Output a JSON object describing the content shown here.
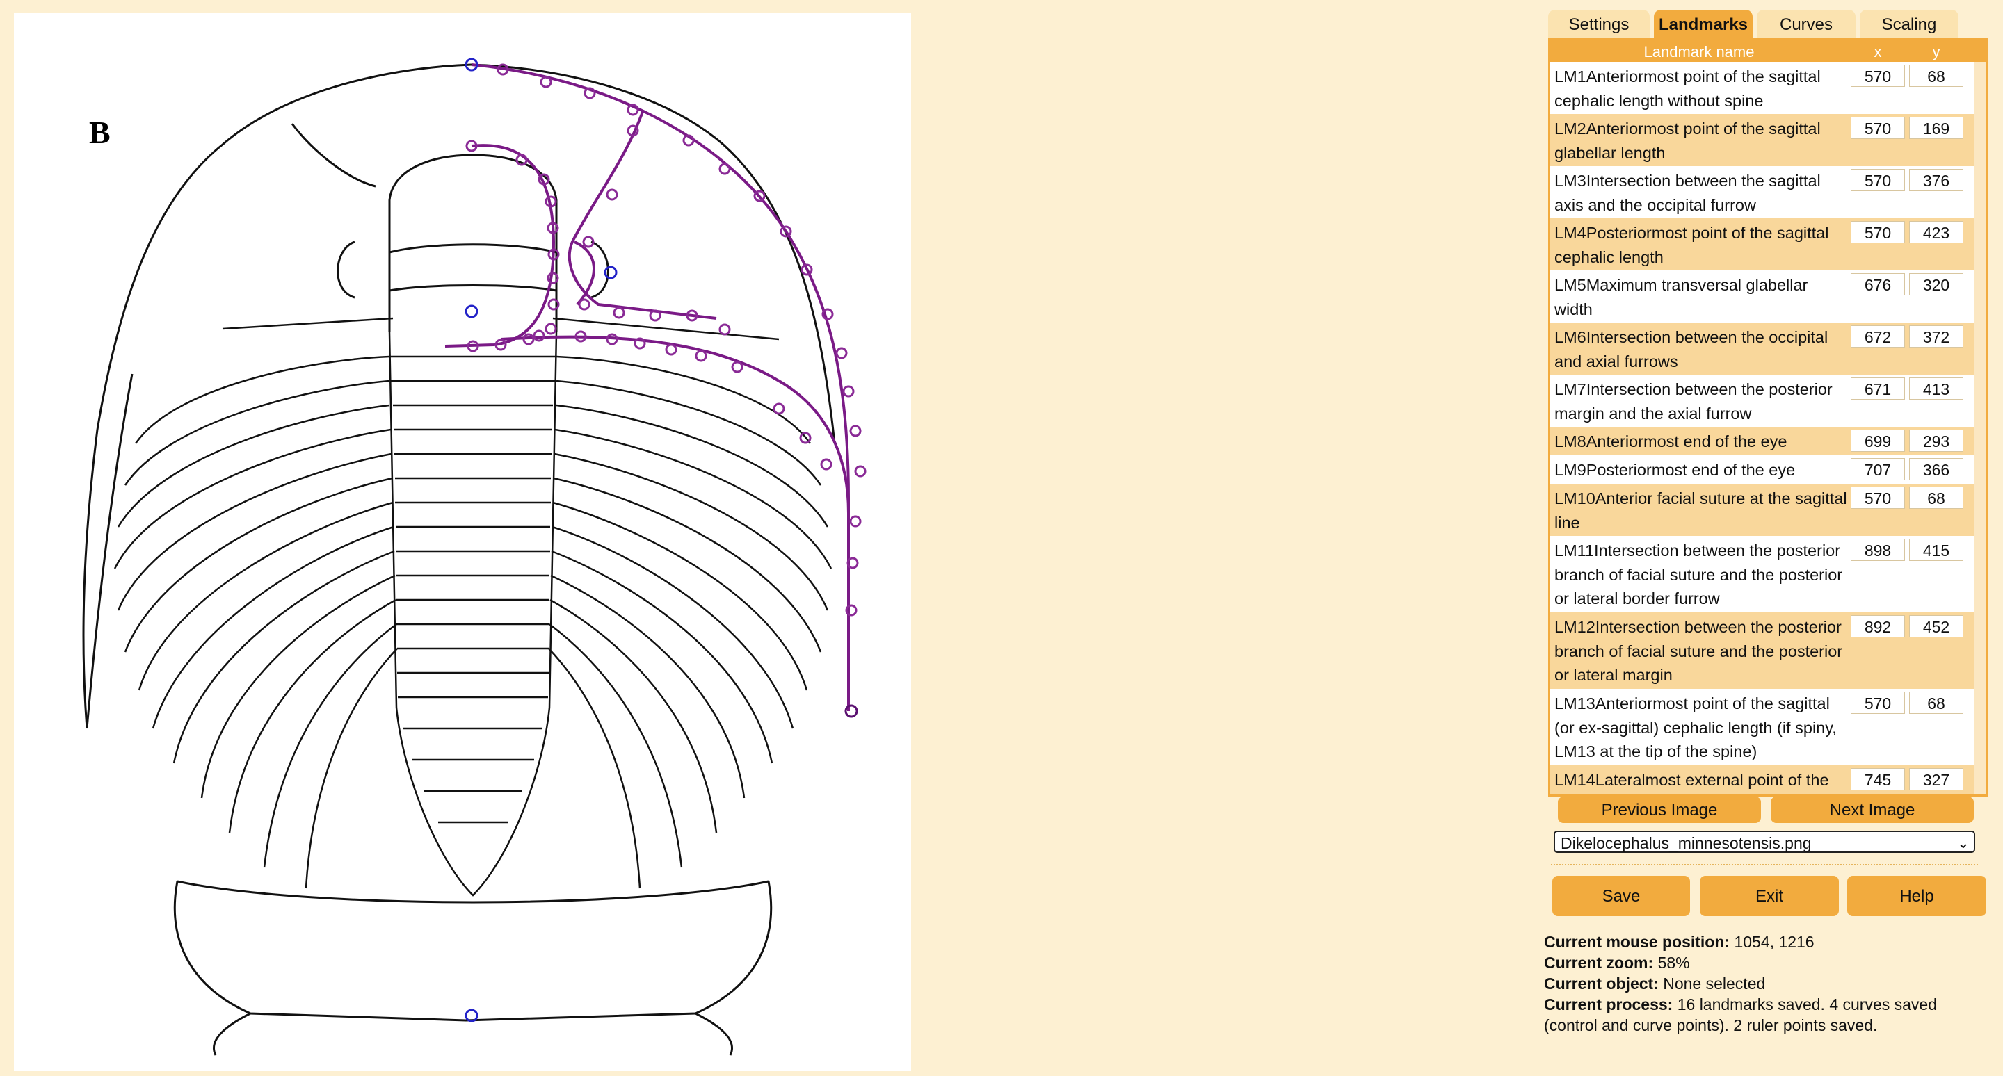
{
  "figure": {
    "label": "B"
  },
  "tabs": [
    {
      "label": "Settings",
      "active": false
    },
    {
      "label": "Landmarks",
      "active": true
    },
    {
      "label": "Curves",
      "active": false
    },
    {
      "label": "Scaling",
      "active": false
    }
  ],
  "table": {
    "headers": {
      "name": "Landmark name",
      "x": "x",
      "y": "y"
    },
    "rows": [
      {
        "name": "LM1Anteriormost point of the sagittal cephalic length without spine",
        "x": "570",
        "y": "68"
      },
      {
        "name": "LM2Anteriormost point of the sagittal glabellar length",
        "x": "570",
        "y": "169"
      },
      {
        "name": "LM3Intersection between the sagittal axis and the occipital furrow",
        "x": "570",
        "y": "376"
      },
      {
        "name": "LM4Posteriormost point of the sagittal cephalic length",
        "x": "570",
        "y": "423"
      },
      {
        "name": "LM5Maximum transversal glabellar width",
        "x": "676",
        "y": "320"
      },
      {
        "name": "LM6Intersection between the occipital and axial furrows",
        "x": "672",
        "y": "372"
      },
      {
        "name": "LM7Intersection between the posterior margin and the axial furrow",
        "x": "671",
        "y": "413"
      },
      {
        "name": "LM8Anteriormost end of the eye",
        "x": "699",
        "y": "293"
      },
      {
        "name": "LM9Posteriormost end of the eye",
        "x": "707",
        "y": "366"
      },
      {
        "name": "LM10Anterior facial suture at the sagittal line",
        "x": "570",
        "y": "68"
      },
      {
        "name": "LM11Intersection between the posterior branch of facial suture and the posterior or lateral border furrow",
        "x": "898",
        "y": "415"
      },
      {
        "name": "LM12Intersection between the posterior branch of facial suture and the posterior or lateral margin",
        "x": "892",
        "y": "452"
      },
      {
        "name": "LM13Anteriormost point of the sagittal (or ex-sagittal) cephalic length (if spiny, LM13 at the tip of the spine)",
        "x": "570",
        "y": "68"
      },
      {
        "name": "LM14Lateralmost external point of the",
        "x": "745",
        "y": "327"
      }
    ]
  },
  "nav": {
    "previous": "Previous Image",
    "next": "Next Image"
  },
  "image_select": {
    "value": "Dikelocephalus_minnesotensis.png"
  },
  "actions": {
    "save": "Save",
    "exit": "Exit",
    "help": "Help"
  },
  "status": {
    "mouse_label": "Current mouse position:",
    "mouse_value": "1054, 1216",
    "zoom_label": "Current zoom:",
    "zoom_value": "58%",
    "object_label": "Current object:",
    "object_value": "None selected",
    "process_label": "Current process:",
    "process_value": "16 landmarks saved. 4 curves saved (control and curve points). 2 ruler points saved."
  },
  "colors": {
    "accent": "#f2ab3e",
    "curve": "#7a1a86",
    "landmark": "#2323c8",
    "background": "#fdf0d2"
  }
}
